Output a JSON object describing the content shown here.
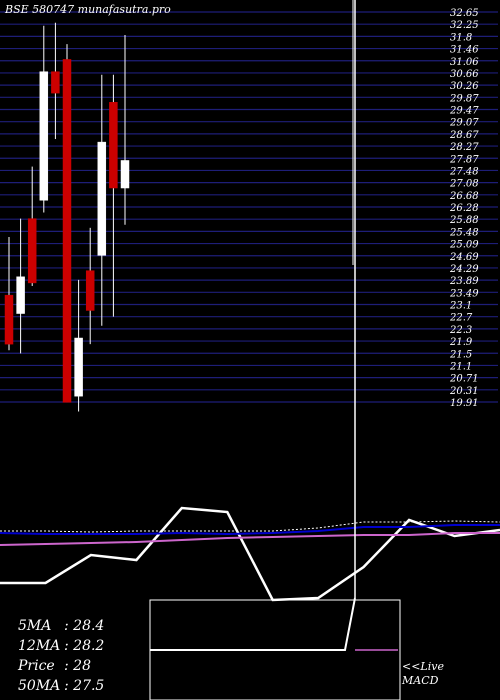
{
  "header": {
    "title": "BSE 580747 munafasutra.pro"
  },
  "chart_data": {
    "type": "candlestick",
    "title": "BSE 580747 munafasutra.pro",
    "y_ticks": [
      "32.65",
      "32.25",
      "31.8",
      "31.46",
      "31.06",
      "30.66",
      "30.26",
      "29.87",
      "29.47",
      "29.07",
      "28.67",
      "28.27",
      "27.87",
      "27.48",
      "27.08",
      "26.68",
      "26.28",
      "25.88",
      "25.48",
      "25.09",
      "24.69",
      "24.29",
      "23.89",
      "23.49",
      "23.1",
      "22.7",
      "22.3",
      "21.9",
      "21.5",
      "21.1",
      "20.71",
      "20.31",
      "19.91"
    ],
    "ylim": [
      19.91,
      32.65
    ],
    "candles": [
      {
        "open": 23.4,
        "high": 25.3,
        "low": 21.6,
        "close": 21.8,
        "color": "#cc0000"
      },
      {
        "open": 22.8,
        "high": 25.9,
        "low": 21.5,
        "close": 24.0,
        "color": "#ffffff"
      },
      {
        "open": 25.9,
        "high": 27.6,
        "low": 23.7,
        "close": 23.8,
        "color": "#cc0000"
      },
      {
        "open": 26.5,
        "high": 32.2,
        "low": 26.1,
        "close": 30.7,
        "color": "#ffffff"
      },
      {
        "open": 30.7,
        "high": 32.3,
        "low": 28.5,
        "close": 30.0,
        "color": "#cc0000"
      },
      {
        "open": 31.1,
        "high": 31.6,
        "low": 19.9,
        "close": 19.9,
        "color": "#cc0000"
      },
      {
        "open": 20.1,
        "high": 23.9,
        "low": 19.6,
        "close": 22.0,
        "color": "#ffffff"
      },
      {
        "open": 22.9,
        "high": 25.6,
        "low": 21.8,
        "close": 24.2,
        "color": "#cc0000"
      },
      {
        "open": 24.7,
        "high": 30.6,
        "low": 22.4,
        "close": 28.4,
        "color": "#ffffff"
      },
      {
        "open": 29.7,
        "high": 30.6,
        "low": 22.7,
        "close": 26.9,
        "color": "#cc0000"
      },
      {
        "open": 26.9,
        "high": 31.9,
        "low": 25.7,
        "close": 27.8,
        "color": "#ffffff"
      }
    ],
    "indicator_lines": [
      {
        "color": "#ffffff",
        "width": 2.5,
        "dash": "",
        "values": [
          0.17,
          0.17,
          0.45,
          0.4,
          0.92,
          0.88,
          0.0,
          0.02,
          0.33,
          0.8,
          0.64,
          0.7
        ]
      },
      {
        "color": "#ffffff",
        "width": 1.0,
        "dash": "2,2",
        "values": [
          0.69,
          0.69,
          0.68,
          0.69,
          0.69,
          0.69,
          0.69,
          0.72,
          0.78,
          0.78,
          0.79,
          0.78
        ]
      },
      {
        "color": "#0000cc",
        "width": 2.0,
        "dash": "",
        "values": [
          0.67,
          0.66,
          0.66,
          0.66,
          0.67,
          0.66,
          0.67,
          0.69,
          0.73,
          0.73,
          0.75,
          0.75
        ]
      },
      {
        "color": "#cc66cc",
        "width": 2.0,
        "dash": "",
        "values": [
          0.55,
          0.56,
          0.57,
          0.58,
          0.6,
          0.62,
          0.63,
          0.64,
          0.65,
          0.65,
          0.67,
          0.67
        ]
      }
    ],
    "macd_line": [
      0.0,
      0.0,
      0.0,
      1.0
    ],
    "stats": [
      {
        "label": "5MA",
        "value": "28.4"
      },
      {
        "label": "12MA",
        "value": "28.2"
      },
      {
        "label": "Price",
        "value": "28"
      },
      {
        "label": "50MA",
        "value": "27.5"
      }
    ],
    "live_label": [
      "<<Live",
      "MACD"
    ]
  }
}
